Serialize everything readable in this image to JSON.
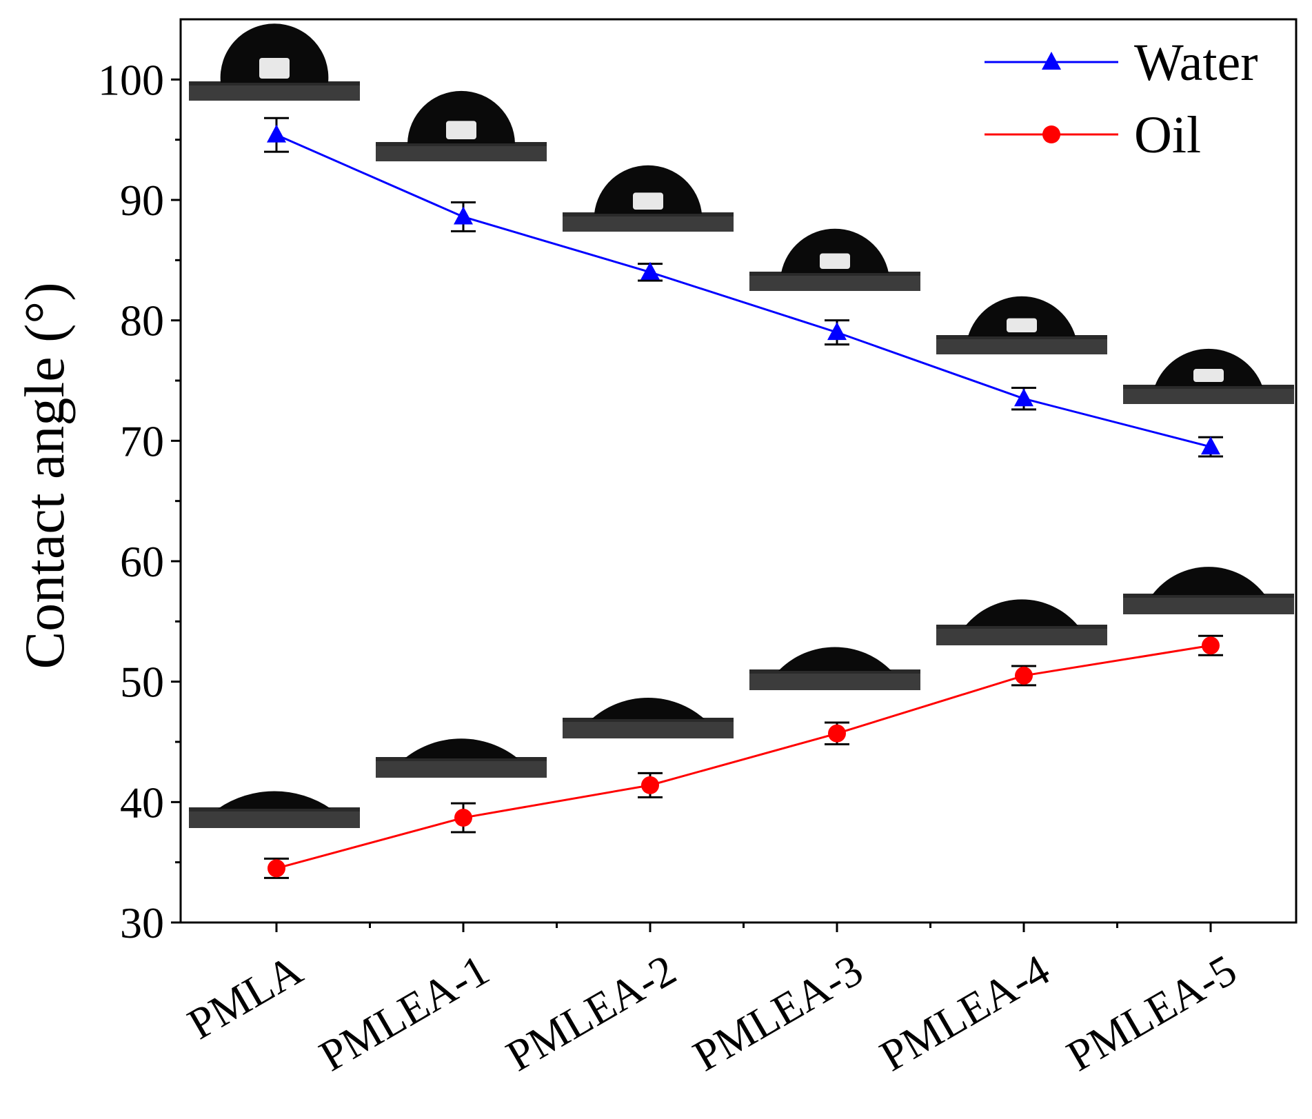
{
  "chart_data": {
    "type": "line",
    "title": "",
    "xlabel": "",
    "ylabel": "Contact angle (°)",
    "categories": [
      "PMLA",
      "PMLEA-1",
      "PMLEA-2",
      "PMLEA-3",
      "PMLEA-4",
      "PMLEA-5"
    ],
    "ylim": [
      30,
      105
    ],
    "yticks": [
      30,
      40,
      50,
      60,
      70,
      80,
      90,
      100
    ],
    "grid": false,
    "legend_position": "top-right",
    "series": [
      {
        "name": "Water",
        "color": "#0000ff",
        "marker": "triangle",
        "values": [
          95.4,
          88.6,
          84.0,
          79.0,
          73.5,
          69.5
        ],
        "errors": [
          1.4,
          1.2,
          0.7,
          1.0,
          0.9,
          0.8
        ],
        "droplet_images": [
          {
            "angle": 95.4
          },
          {
            "angle": 88.6
          },
          {
            "angle": 84.0
          },
          {
            "angle": 79.0
          },
          {
            "angle": 73.5
          },
          {
            "angle": 69.5
          }
        ]
      },
      {
        "name": "Oil",
        "color": "#ff0000",
        "marker": "circle",
        "values": [
          34.5,
          38.7,
          41.4,
          45.7,
          50.5,
          53.0
        ],
        "errors": [
          0.8,
          1.2,
          1.0,
          0.9,
          0.8,
          0.8
        ],
        "droplet_images": [
          {
            "angle": 34.5
          },
          {
            "angle": 38.7
          },
          {
            "angle": 41.4
          },
          {
            "angle": 45.7
          },
          {
            "angle": 50.5
          },
          {
            "angle": 53.0
          }
        ]
      }
    ]
  }
}
